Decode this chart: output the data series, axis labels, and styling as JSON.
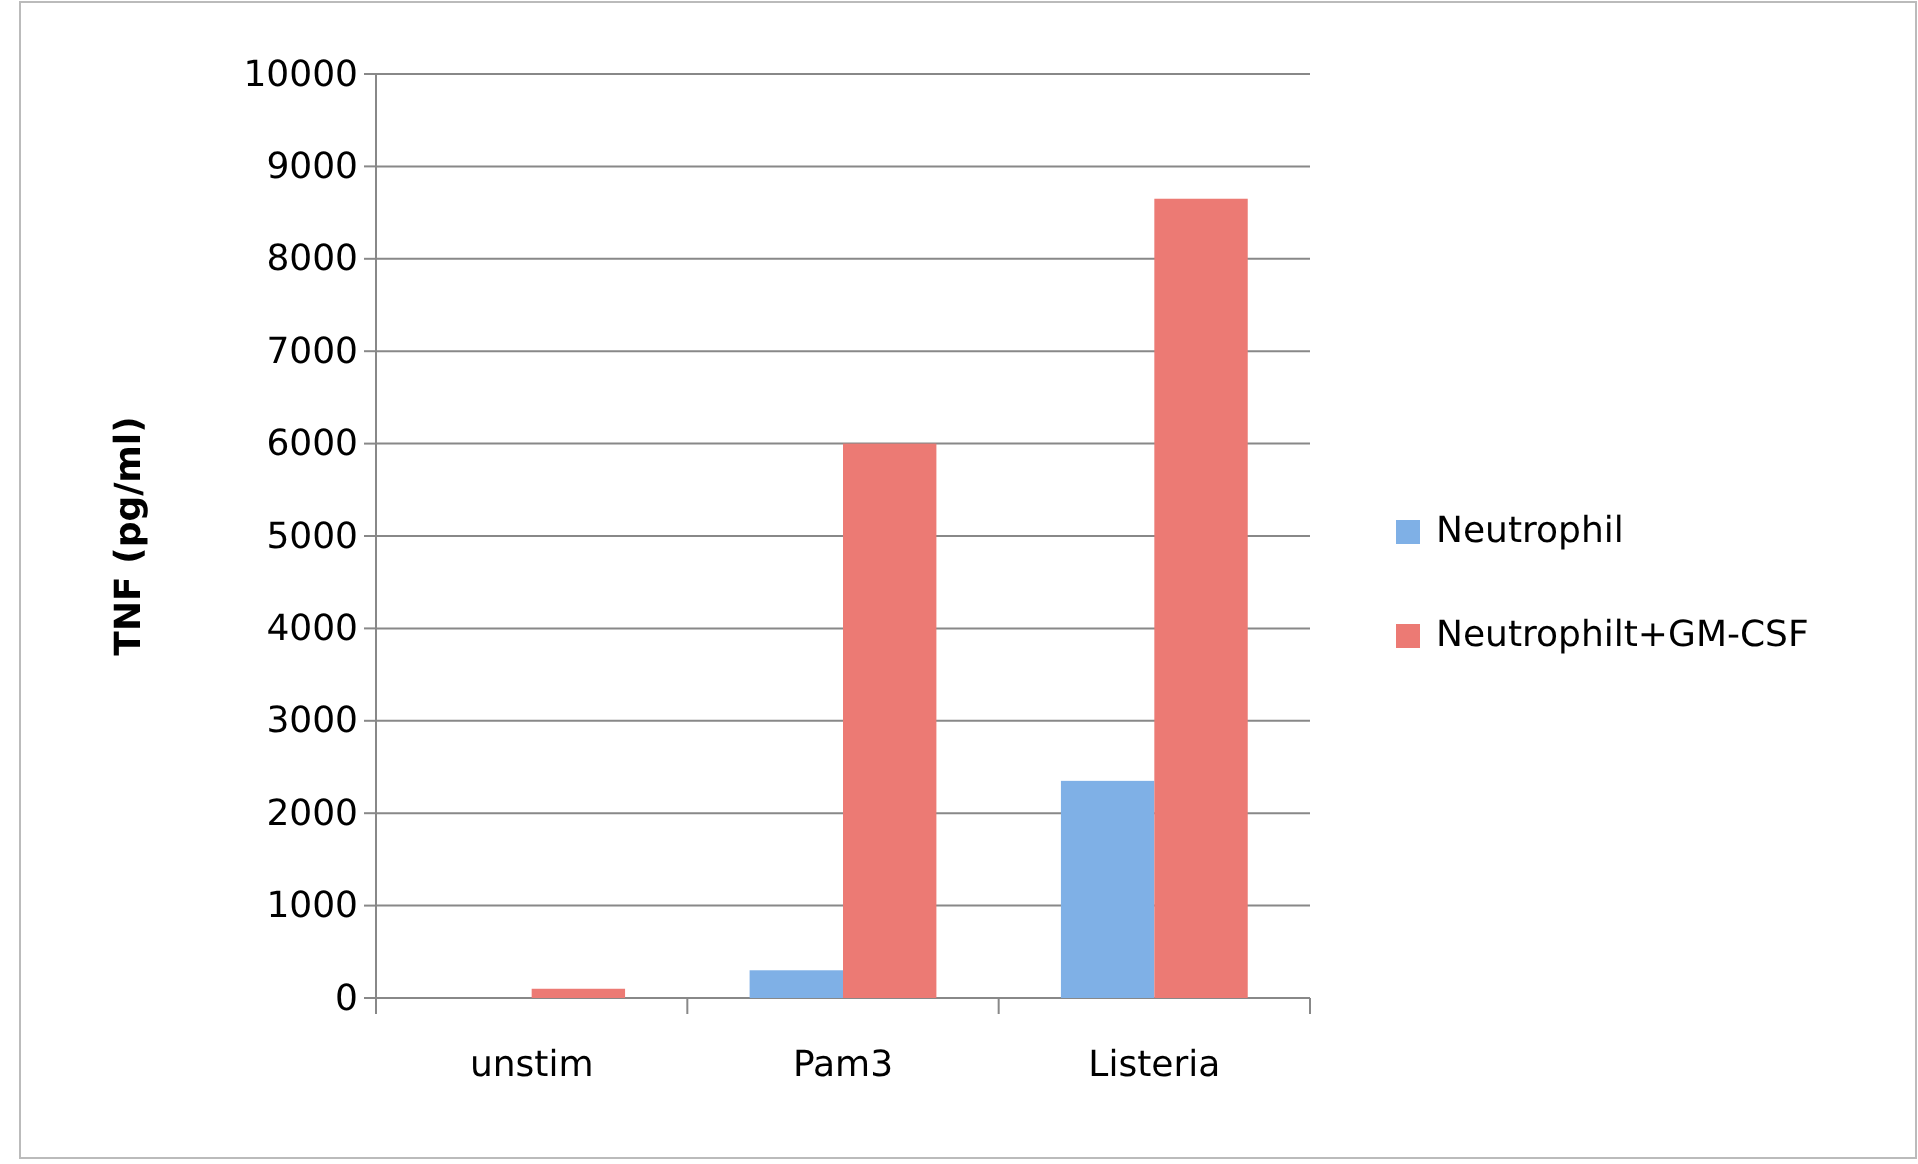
{
  "chart_data": {
    "type": "bar",
    "ylabel": "TNF (pg/ml)",
    "categories": [
      "unstim",
      "Pam3",
      "Listeria"
    ],
    "series": [
      {
        "name": "Neutrophil",
        "color": "#7fb0e6",
        "values": [
          0,
          300,
          2350
        ]
      },
      {
        "name": "Neutrophilt+GM-CSF",
        "color": "#ec7a74",
        "values": [
          100,
          6000,
          8650
        ]
      }
    ],
    "ylim": [
      0,
      10000
    ],
    "yticks": [
      0,
      1000,
      2000,
      3000,
      4000,
      5000,
      6000,
      7000,
      8000,
      9000,
      10000
    ],
    "grid": "y",
    "legend": "right"
  }
}
